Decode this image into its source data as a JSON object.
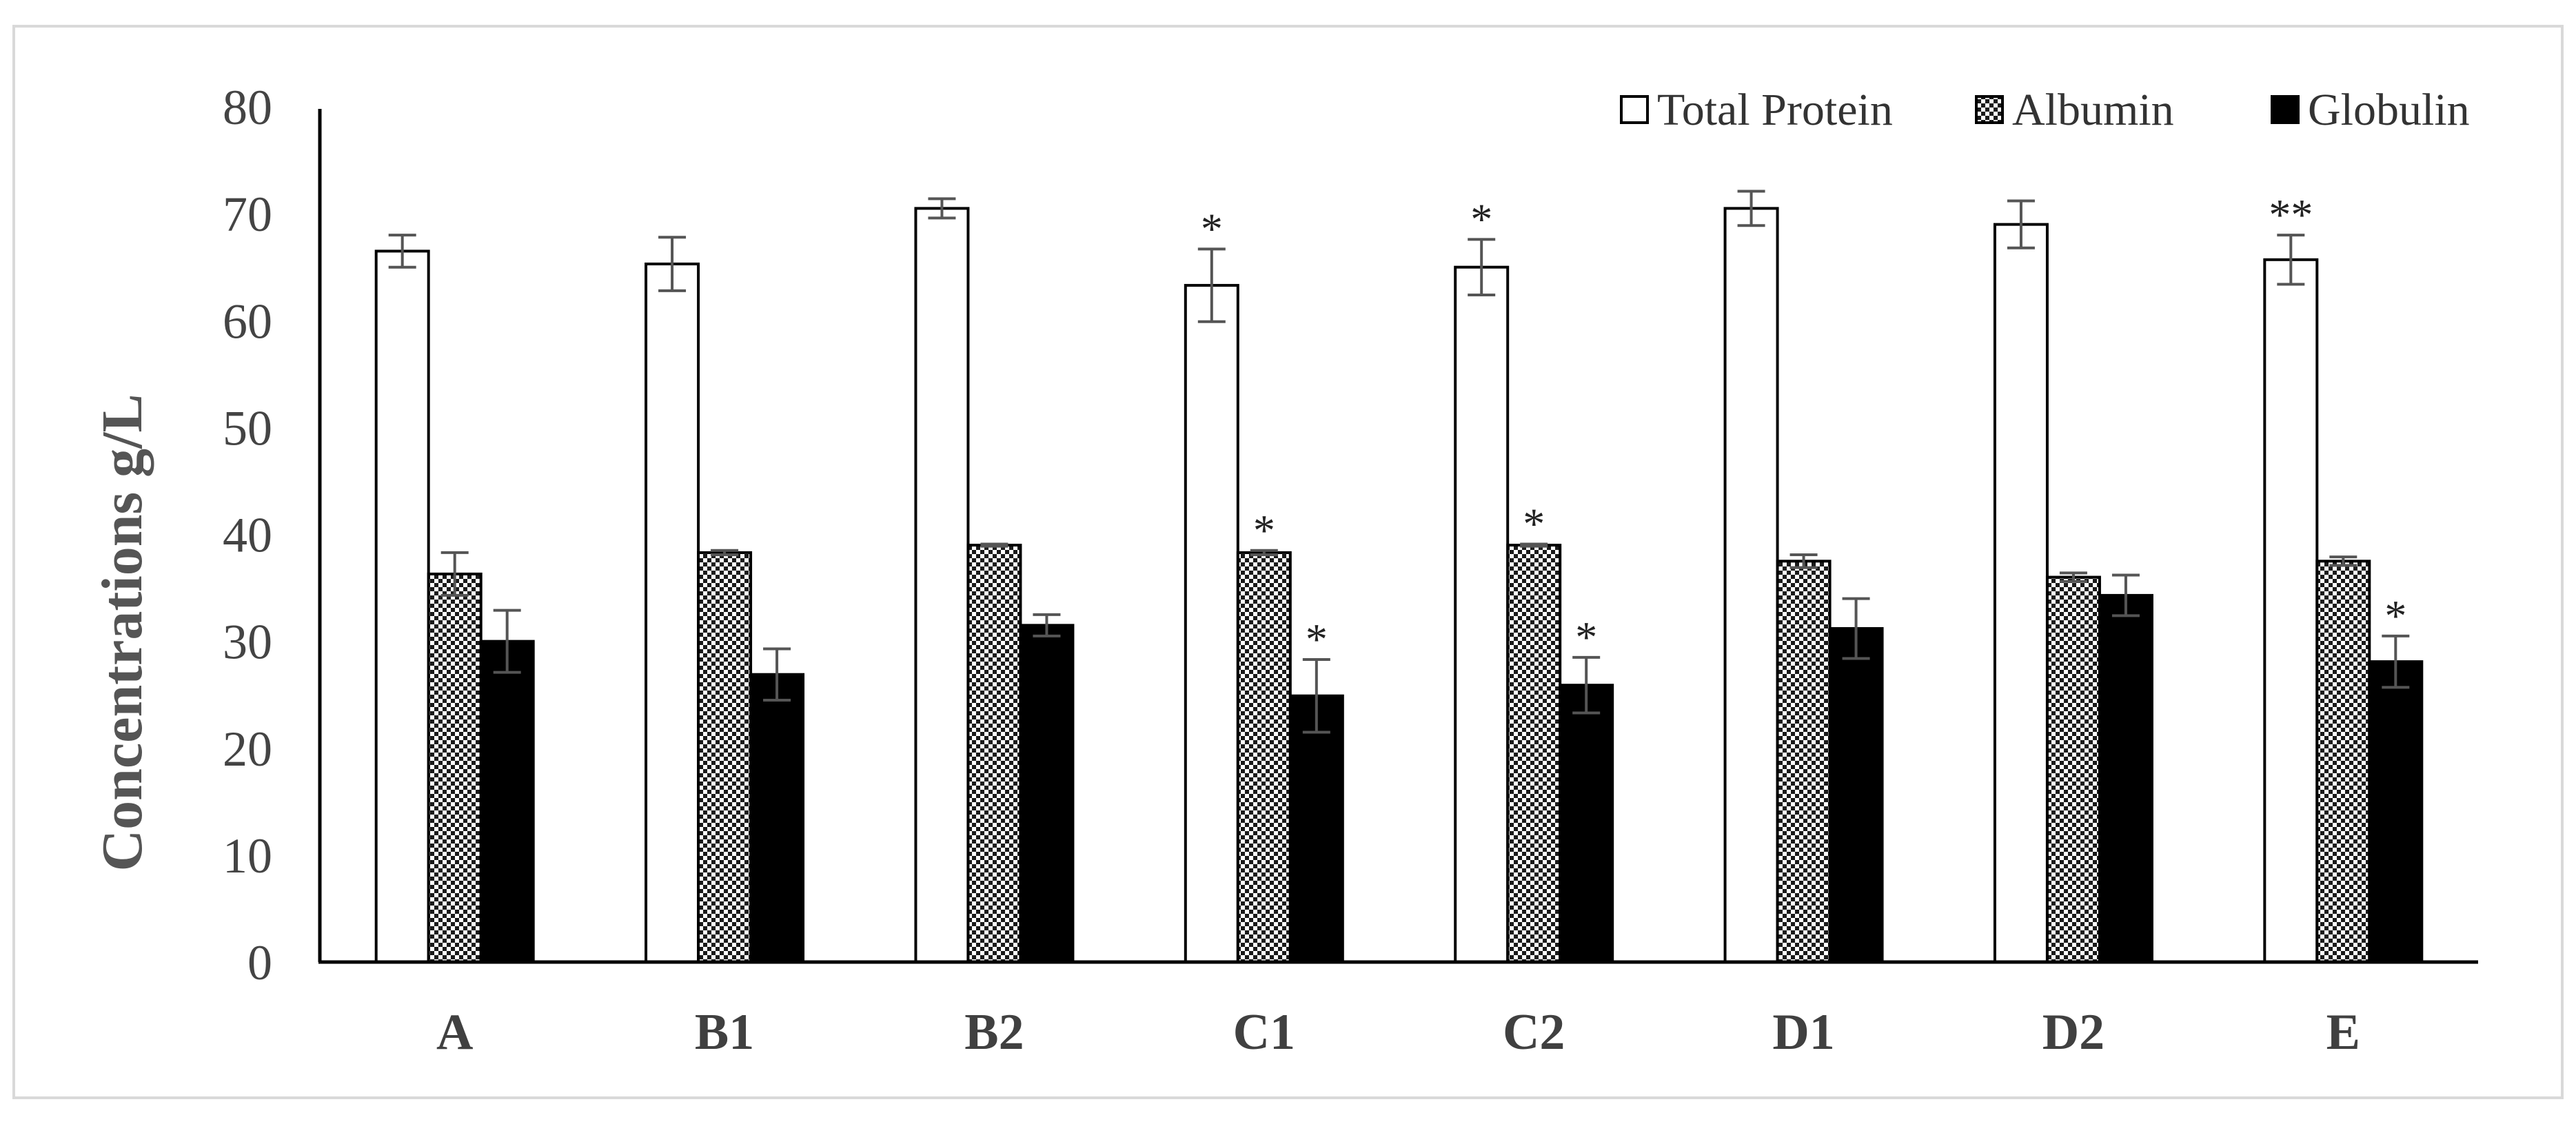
{
  "chart_data": {
    "type": "bar",
    "title": "",
    "xlabel": "",
    "ylabel": "Concentrations g/L",
    "ylim": [
      0,
      80
    ],
    "yticks": [
      0,
      10,
      20,
      30,
      40,
      50,
      60,
      70,
      80
    ],
    "ytick_labels": [
      "0",
      "10",
      "20",
      "30",
      "40",
      "50",
      "60",
      "70",
      "80"
    ],
    "grid": false,
    "legend_position": "top-right",
    "categories": [
      "A",
      "B1",
      "B2",
      "C1",
      "C2",
      "D1",
      "D2",
      "E"
    ],
    "series": [
      {
        "name": "Total Protein",
        "pattern": "white",
        "values": [
          66.5,
          65.3,
          70.5,
          63.3,
          65.0,
          70.5,
          69.0,
          65.7
        ],
        "errors": [
          1.5,
          2.5,
          0.9,
          3.4,
          2.6,
          1.6,
          2.2,
          2.3
        ],
        "annotations": [
          "",
          "",
          "",
          "*",
          "*",
          "",
          "",
          "**"
        ]
      },
      {
        "name": "Albumin",
        "pattern": "checker",
        "values": [
          36.3,
          38.3,
          39.0,
          38.3,
          39.0,
          37.5,
          36.0,
          37.5
        ],
        "errors": [
          2.0,
          0.2,
          0.1,
          0.2,
          0.1,
          0.6,
          0.4,
          0.4
        ],
        "annotations": [
          "",
          "",
          "",
          "*",
          "*",
          "",
          "",
          ""
        ]
      },
      {
        "name": "Globulin",
        "pattern": "black",
        "values": [
          30.0,
          26.9,
          31.5,
          24.9,
          25.9,
          31.2,
          34.3,
          28.1
        ],
        "errors": [
          2.9,
          2.4,
          1.0,
          3.4,
          2.6,
          2.8,
          1.9,
          2.4
        ],
        "annotations": [
          "",
          "",
          "",
          "*",
          "*",
          "",
          "",
          "*"
        ]
      }
    ]
  }
}
